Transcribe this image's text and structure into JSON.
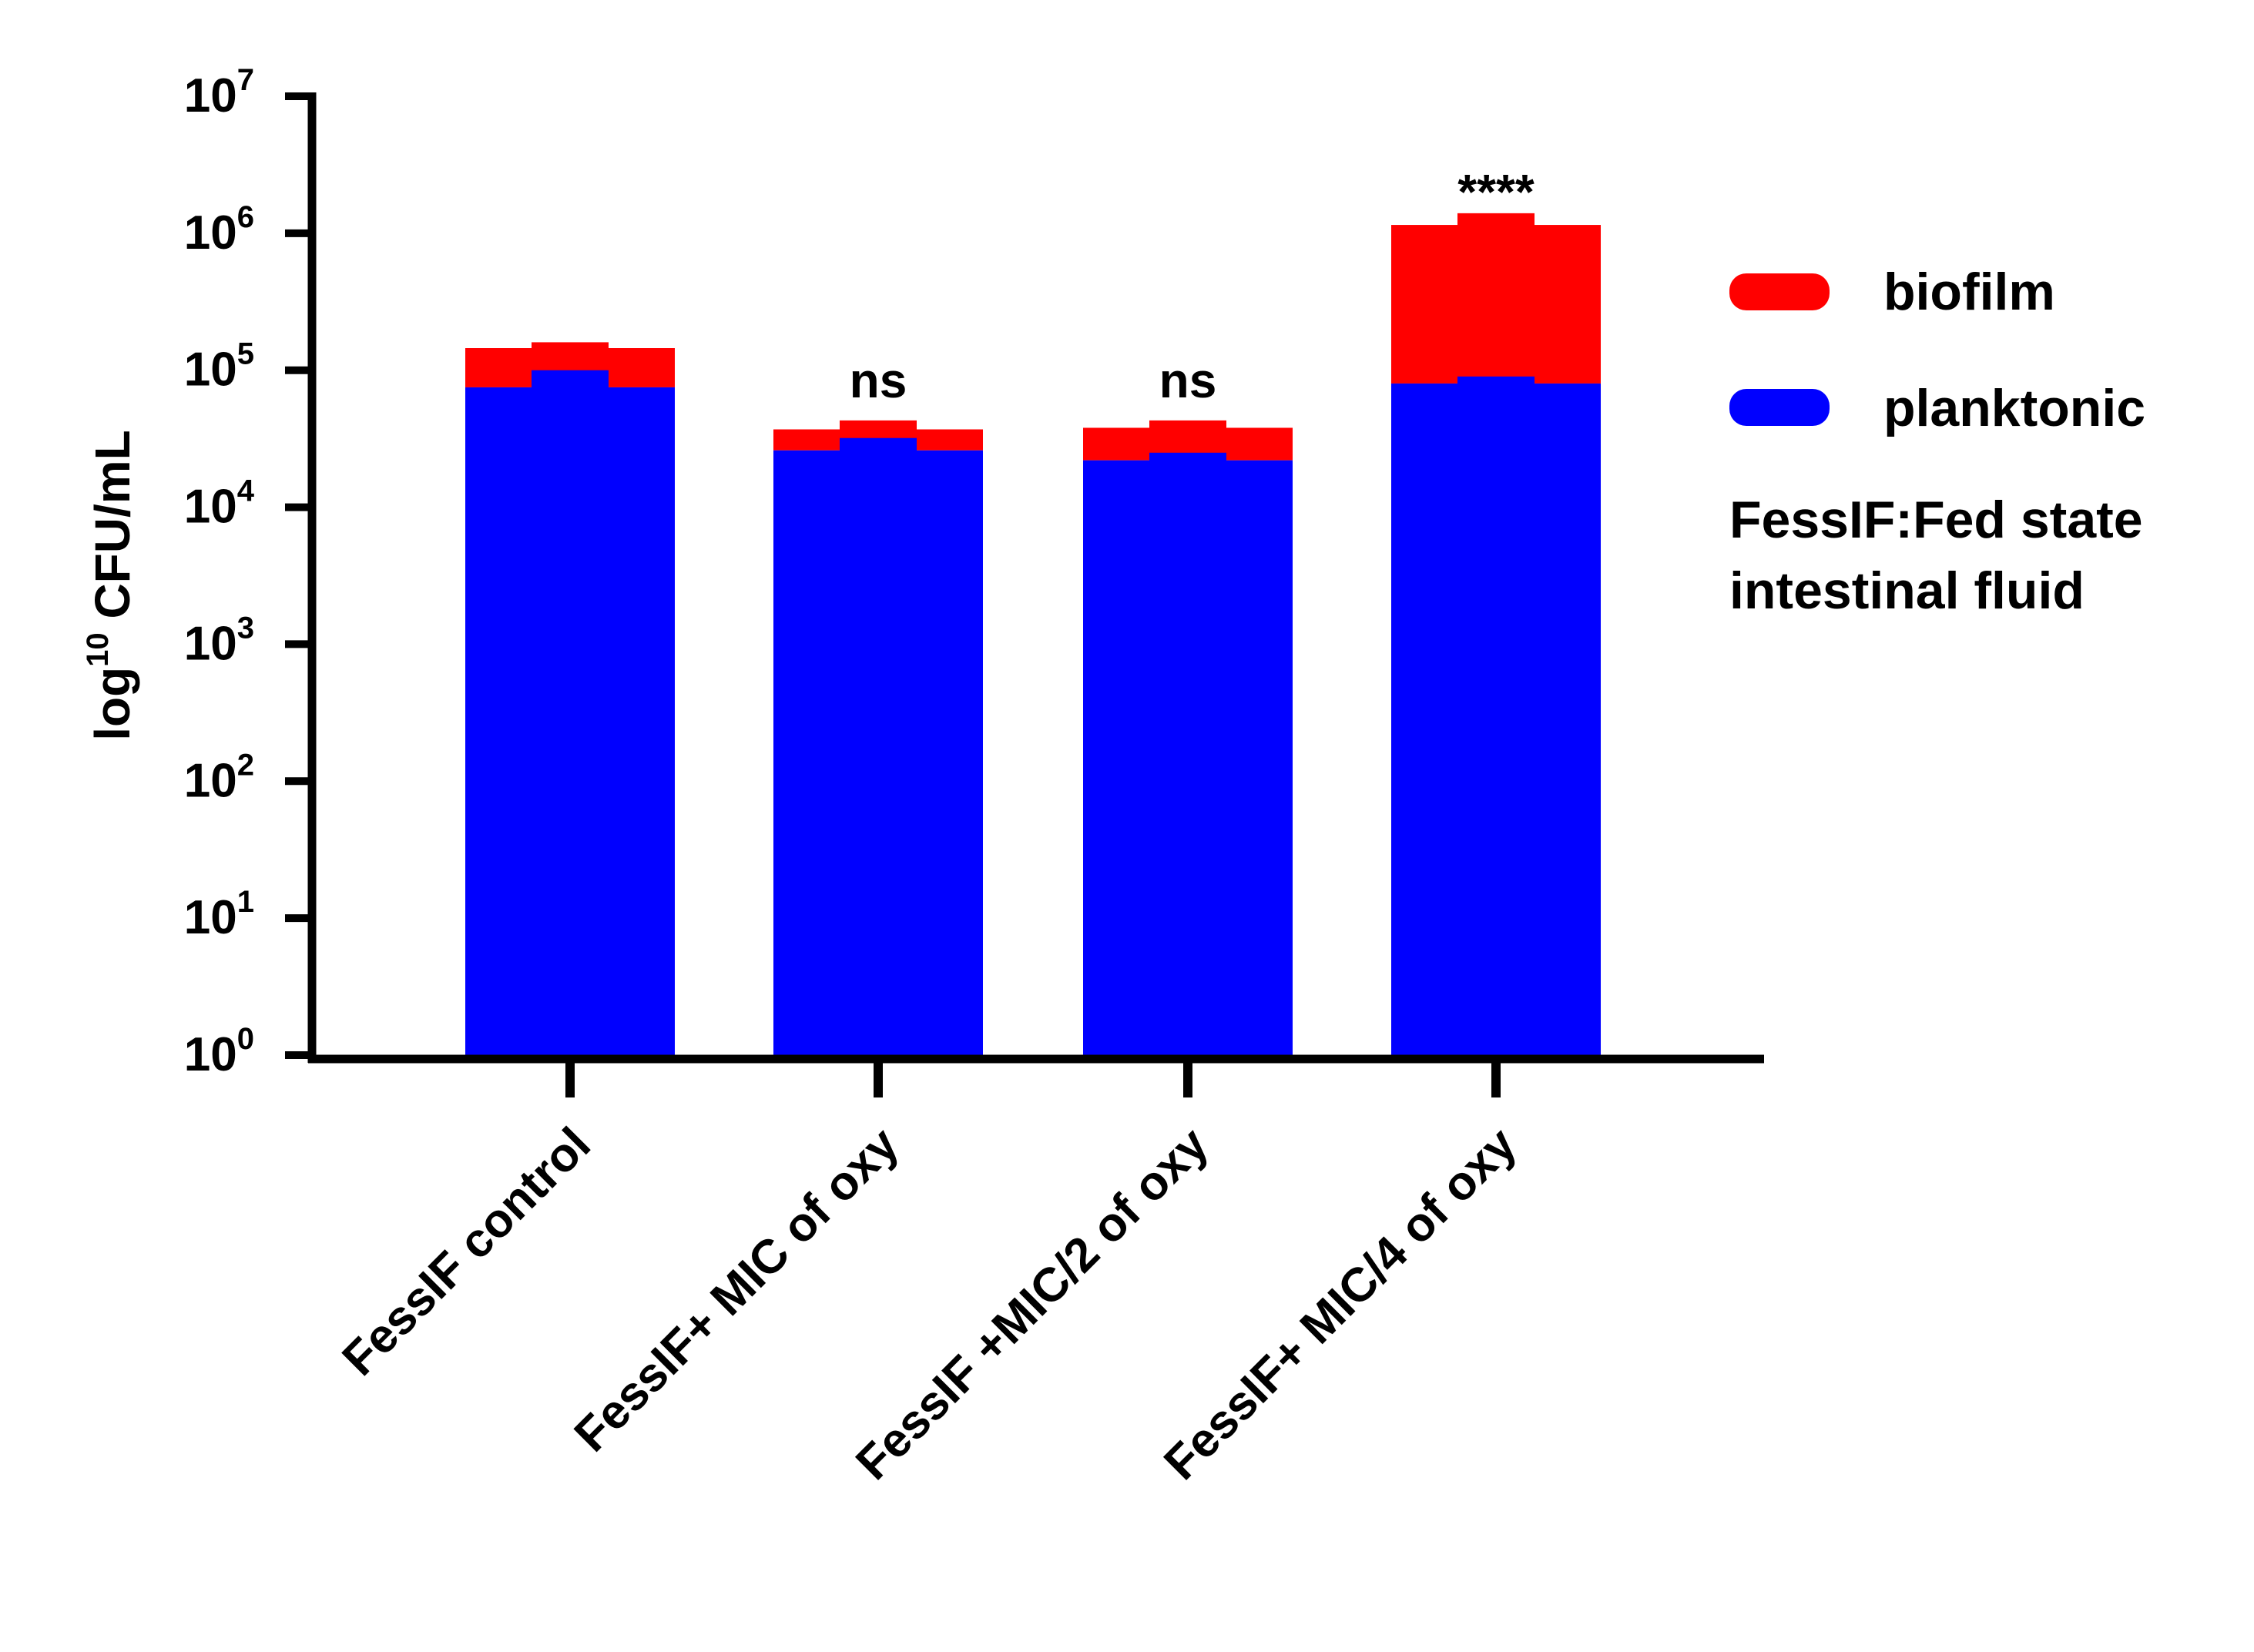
{
  "chart_data": {
    "type": "bar",
    "stacked": true,
    "scale": "log",
    "title": "",
    "ylabel": {
      "base": "log",
      "sup": "10",
      "rest": " CFU/mL"
    },
    "xlabel": "",
    "ylim": [
      1,
      10000000
    ],
    "y_ticks": [
      {
        "base": "10",
        "exp": "0",
        "value": 1
      },
      {
        "base": "10",
        "exp": "1",
        "value": 10
      },
      {
        "base": "10",
        "exp": "2",
        "value": 100
      },
      {
        "base": "10",
        "exp": "3",
        "value": 1000
      },
      {
        "base": "10",
        "exp": "4",
        "value": 10000
      },
      {
        "base": "10",
        "exp": "5",
        "value": 100000
      },
      {
        "base": "10",
        "exp": "6",
        "value": 1000000
      },
      {
        "base": "10",
        "exp": "7",
        "value": 10000000
      }
    ],
    "categories": [
      "FessIF control",
      "FessIF+ MIC of oxy",
      "FessIF +MIC/2 of oxy",
      "FessIF+ MIC/4 of oxy"
    ],
    "series": [
      {
        "name": "planktonic",
        "color": "#0000ff",
        "values": [
          75000,
          26000,
          22000,
          80000
        ],
        "error_top": [
          100000,
          32000,
          25000,
          90000
        ]
      },
      {
        "name": "biofilm",
        "color": "#ff0000",
        "values": [
          145000,
          37000,
          38000,
          1150000
        ],
        "error_top": [
          160000,
          43000,
          43000,
          1400000
        ]
      }
    ],
    "significance": [
      "",
      "ns",
      "ns",
      "****"
    ],
    "legend": {
      "position": "right",
      "entries": [
        "biofilm",
        "planktonic"
      ]
    },
    "note": [
      "FessIF:Fed state",
      "intestinal fluid"
    ],
    "grid": false
  }
}
